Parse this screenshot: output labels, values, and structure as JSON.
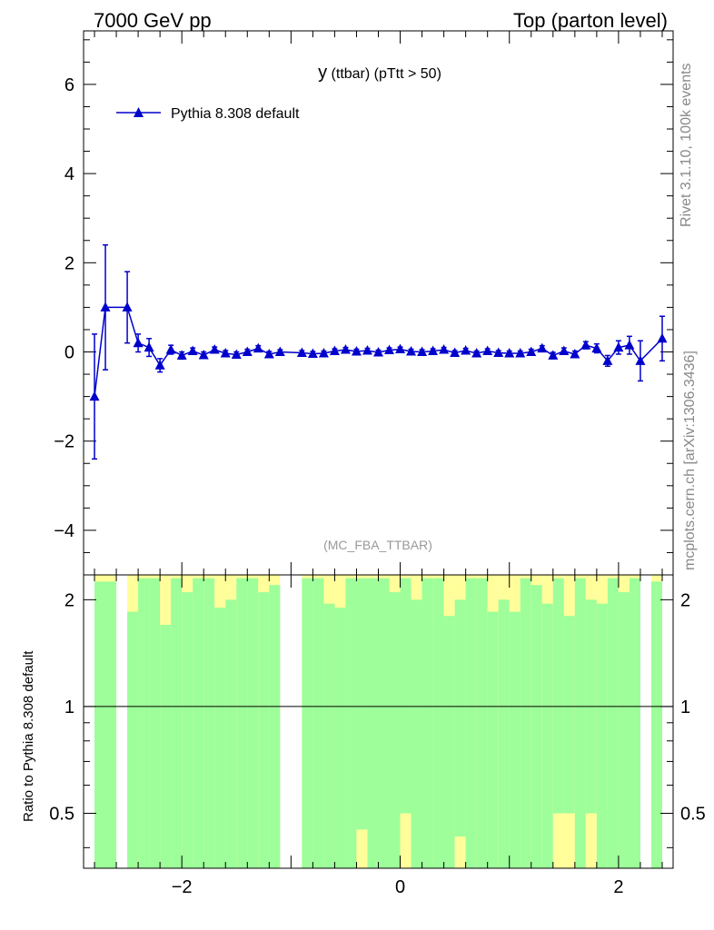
{
  "header": {
    "left": "7000 GeV pp",
    "right": "Top (parton level)"
  },
  "side_labels": {
    "upper": "Rivet 3.1.10,  100k events",
    "lower": "mcplots.cern.ch [arXiv:1306.3436]"
  },
  "chart_data": [
    {
      "type": "line",
      "title_main": "y",
      "title_rest": " (ttbar)  (pTtt > 50)",
      "watermark": "(MC_FBA_TTBAR)",
      "xlim": [
        -2.9,
        2.5
      ],
      "ylim": [
        -5,
        7.2
      ],
      "yticks": [
        -4,
        -2,
        0,
        2,
        4,
        6
      ],
      "ytick_labels": [
        "−4",
        "−2",
        "0",
        "2",
        "4",
        "6"
      ],
      "legend_position": "top-left",
      "series": [
        {
          "name": "Pythia 8.308 default",
          "color": "#0000cc",
          "marker": "triangle-up",
          "x": [
            -2.8,
            -2.7,
            -2.5,
            -2.4,
            -2.3,
            -2.2,
            -2.1,
            -2.0,
            -1.9,
            -1.8,
            -1.7,
            -1.6,
            -1.5,
            -1.4,
            -1.3,
            -1.2,
            -1.1,
            -0.9,
            -0.8,
            -0.7,
            -0.6,
            -0.5,
            -0.4,
            -0.3,
            -0.2,
            -0.1,
            0.0,
            0.1,
            0.2,
            0.3,
            0.4,
            0.5,
            0.6,
            0.7,
            0.8,
            0.9,
            1.0,
            1.1,
            1.2,
            1.3,
            1.4,
            1.5,
            1.6,
            1.7,
            1.8,
            1.9,
            2.0,
            2.1,
            2.2,
            2.4
          ],
          "y": [
            -1.0,
            1.0,
            1.0,
            0.2,
            0.1,
            -0.3,
            0.05,
            -0.08,
            0.02,
            -0.07,
            0.05,
            -0.03,
            -0.06,
            0.0,
            0.08,
            -0.05,
            0.0,
            -0.02,
            -0.04,
            -0.03,
            0.02,
            0.05,
            0.01,
            0.03,
            -0.01,
            0.04,
            0.06,
            0.01,
            0.0,
            0.02,
            0.05,
            -0.02,
            0.03,
            -0.03,
            0.02,
            -0.02,
            -0.03,
            -0.03,
            0.0,
            0.08,
            -0.08,
            0.02,
            -0.05,
            0.15,
            0.08,
            -0.2,
            0.1,
            0.15,
            -0.2,
            0.3
          ],
          "yerr": [
            1.4,
            1.4,
            0.8,
            0.2,
            0.2,
            0.15,
            0.1,
            0.08,
            0.07,
            0.07,
            0.06,
            0.06,
            0.06,
            0.06,
            0.06,
            0.06,
            0.05,
            0.05,
            0.05,
            0.05,
            0.05,
            0.05,
            0.05,
            0.05,
            0.05,
            0.05,
            0.05,
            0.05,
            0.05,
            0.05,
            0.05,
            0.05,
            0.05,
            0.05,
            0.05,
            0.05,
            0.05,
            0.05,
            0.06,
            0.06,
            0.07,
            0.07,
            0.07,
            0.08,
            0.1,
            0.12,
            0.15,
            0.2,
            0.45,
            0.5
          ]
        }
      ]
    },
    {
      "type": "bar",
      "ylabel": "Ratio to Pythia 8.308 default",
      "xlim": [
        -2.9,
        2.5
      ],
      "ylim": [
        0.35,
        2.35
      ],
      "yscale": "log",
      "yticks": [
        0.5,
        1,
        2
      ],
      "ytick_labels": [
        "0.5",
        "1",
        "2"
      ],
      "xticks": [
        -2,
        0,
        2
      ],
      "xtick_labels": [
        "−2",
        "0",
        "2"
      ],
      "reference_line": 1,
      "band_colors": {
        "inner": "#9dfe9a",
        "outer": "#fffe9a"
      },
      "bins": {
        "edges": [
          -2.8,
          -2.7,
          -2.6,
          -2.5,
          -2.4,
          -2.3,
          -2.2,
          -2.1,
          -2.0,
          -1.9,
          -1.8,
          -1.7,
          -1.6,
          -1.5,
          -1.4,
          -1.3,
          -1.2,
          -1.1,
          -1.0,
          -0.9,
          -0.8,
          -0.7,
          -0.6,
          -0.5,
          -0.4,
          -0.3,
          -0.2,
          -0.1,
          0.0,
          0.1,
          0.2,
          0.3,
          0.4,
          0.5,
          0.6,
          0.7,
          0.8,
          0.9,
          1.0,
          1.1,
          1.2,
          1.3,
          1.4,
          1.5,
          1.6,
          1.7,
          1.8,
          1.9,
          2.0,
          2.1,
          2.2,
          2.3,
          2.4
        ],
        "inner_hi": [
          2.25,
          2.25,
          null,
          1.85,
          2.3,
          2.3,
          1.7,
          2.3,
          2.1,
          2.3,
          2.3,
          1.9,
          2.0,
          2.3,
          2.3,
          2.1,
          2.2,
          null,
          null,
          2.3,
          2.3,
          1.95,
          1.9,
          2.3,
          2.3,
          2.3,
          2.3,
          2.1,
          2.3,
          2.0,
          2.3,
          2.3,
          1.8,
          2.0,
          2.3,
          2.3,
          1.85,
          2.0,
          1.85,
          2.3,
          2.2,
          1.95,
          2.3,
          1.8,
          2.3,
          2.0,
          1.95,
          2.3,
          2.1,
          2.3,
          null,
          2.25
        ],
        "outer_hi": [
          2.35,
          2.35,
          null,
          2.35,
          2.35,
          2.35,
          2.35,
          2.35,
          2.35,
          2.35,
          2.35,
          2.35,
          2.35,
          2.35,
          2.35,
          2.35,
          2.35,
          null,
          null,
          2.35,
          2.35,
          2.35,
          2.35,
          2.35,
          2.35,
          2.35,
          2.35,
          2.35,
          2.35,
          2.35,
          2.35,
          2.35,
          2.35,
          2.35,
          2.35,
          2.35,
          2.35,
          2.35,
          2.35,
          2.35,
          2.35,
          2.35,
          2.35,
          2.35,
          2.35,
          2.35,
          2.35,
          2.35,
          2.35,
          2.35,
          null,
          2.35
        ],
        "inner_lo": [
          0.35,
          0.35,
          null,
          0.35,
          0.35,
          0.35,
          0.35,
          0.35,
          0.35,
          0.35,
          0.35,
          0.35,
          0.35,
          0.35,
          0.35,
          0.35,
          0.35,
          null,
          null,
          0.35,
          0.35,
          0.35,
          0.35,
          0.35,
          0.45,
          0.35,
          0.35,
          0.35,
          0.5,
          0.35,
          0.35,
          0.35,
          0.35,
          0.43,
          0.35,
          0.35,
          0.35,
          0.35,
          0.35,
          0.35,
          0.35,
          0.35,
          0.5,
          0.5,
          0.35,
          0.5,
          0.35,
          0.35,
          0.35,
          0.35,
          null,
          0.35
        ],
        "outer_lo": [
          0.35,
          0.35,
          null,
          0.35,
          0.35,
          0.35,
          0.35,
          0.35,
          0.35,
          0.35,
          0.35,
          0.35,
          0.35,
          0.35,
          0.35,
          0.35,
          0.35,
          null,
          null,
          0.35,
          0.35,
          0.35,
          0.35,
          0.35,
          0.35,
          0.35,
          0.35,
          0.35,
          0.35,
          0.35,
          0.35,
          0.35,
          0.35,
          0.35,
          0.35,
          0.35,
          0.35,
          0.35,
          0.35,
          0.35,
          0.35,
          0.35,
          0.35,
          0.35,
          0.35,
          0.35,
          0.35,
          0.35,
          0.35,
          0.35,
          null,
          0.35
        ]
      }
    }
  ]
}
